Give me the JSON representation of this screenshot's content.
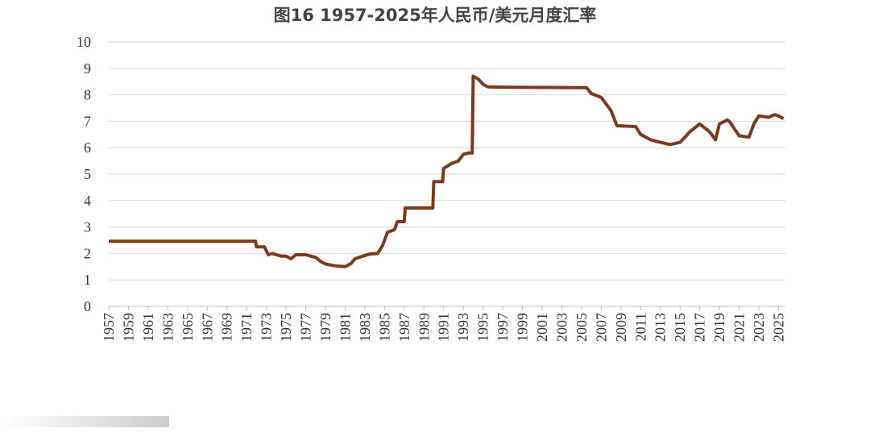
{
  "chart_data": {
    "type": "line",
    "title": "图16 1957-2025年人民币/美元月度汇率",
    "color": "#7b3a1c",
    "grid": true,
    "x": [
      1957,
      1971.9,
      1972.0,
      1972.8,
      1973.2,
      1973.6,
      1974.5,
      1975.0,
      1975.5,
      1976,
      1977,
      1978,
      1978.5,
      1979,
      1980,
      1981,
      1981.6,
      1982,
      1982.8,
      1983.5,
      1984.3,
      1984.8,
      1985.3,
      1986,
      1986.3,
      1987,
      1987.1,
      1989.9,
      1990.0,
      1990.9,
      1991,
      1991.8,
      1992.5,
      1993,
      1993.5,
      1993.9,
      1994,
      1994.5,
      1995,
      1995.5,
      1997,
      2000,
      2005.5,
      2006,
      2007,
      2008,
      2008.6,
      2010.5,
      2011,
      2012,
      2013,
      2014,
      2015,
      2016,
      2017,
      2018,
      2018.6,
      2019,
      2019.8,
      2020,
      2021,
      2022,
      2022.5,
      2023,
      2024,
      2024.6,
      2025,
      2025.5
    ],
    "values": [
      2.46,
      2.46,
      2.25,
      2.25,
      1.95,
      2.0,
      1.9,
      1.9,
      1.8,
      1.95,
      1.95,
      1.85,
      1.7,
      1.6,
      1.53,
      1.5,
      1.62,
      1.8,
      1.9,
      1.98,
      2.0,
      2.3,
      2.8,
      2.9,
      3.2,
      3.2,
      3.72,
      3.72,
      4.72,
      4.72,
      5.22,
      5.4,
      5.5,
      5.75,
      5.8,
      5.8,
      8.7,
      8.6,
      8.4,
      8.3,
      8.29,
      8.28,
      8.27,
      8.05,
      7.9,
      7.4,
      6.83,
      6.8,
      6.5,
      6.3,
      6.2,
      6.12,
      6.2,
      6.6,
      6.9,
      6.6,
      6.3,
      6.9,
      7.05,
      7.0,
      6.45,
      6.4,
      6.9,
      7.2,
      7.15,
      7.25,
      7.2,
      7.1
    ],
    "xlim": [
      1957,
      2025.7
    ],
    "ylim": [
      0,
      10
    ],
    "xticks": [
      1957,
      1959,
      1961,
      1963,
      1965,
      1967,
      1969,
      1971,
      1973,
      1975,
      1977,
      1979,
      1981,
      1983,
      1985,
      1987,
      1989,
      1991,
      1993,
      1995,
      1997,
      1999,
      2001,
      2003,
      2005,
      2007,
      2009,
      2011,
      2013,
      2015,
      2017,
      2019,
      2021,
      2023,
      2025
    ],
    "yticks": [
      0,
      1,
      2,
      3,
      4,
      5,
      6,
      7,
      8,
      9,
      10
    ]
  }
}
